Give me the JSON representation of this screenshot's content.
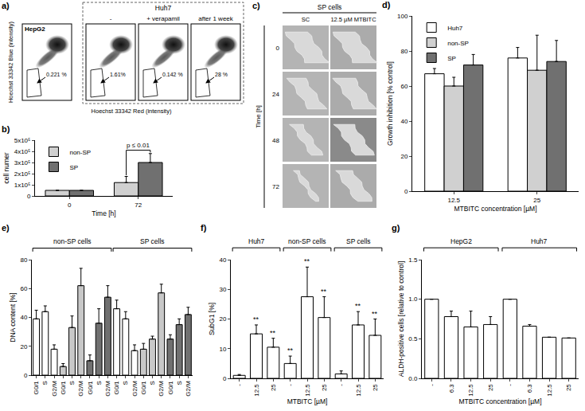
{
  "flow_panel": {
    "label": "a)",
    "x_label": "Hoechst 33342 Red (intensity)",
    "y_label": "Hoechst 33342 Blue (intensity)",
    "group": "Huh7",
    "plots": [
      {
        "title": "HepG2",
        "gate": "0.221 %"
      },
      {
        "header": "-",
        "gate": "1.61%"
      },
      {
        "header": "+ verapamil",
        "gate": "0.142 %"
      },
      {
        "header": "after 1 week",
        "gate": "28 %"
      }
    ]
  },
  "image_panel": {
    "label": "c)",
    "title": "SP cells",
    "columns": [
      "SC",
      "12.5 µM MTBITC"
    ],
    "rows": [
      "0",
      "24",
      "48",
      "72"
    ],
    "row_label": "Time [h]"
  },
  "chart_data": [
    {
      "label": "b)",
      "type": "bar",
      "categories": [
        "0",
        "72"
      ],
      "x_label": "Time [h]",
      "y_label": "cell numer",
      "series": [
        {
          "name": "non-SP",
          "color": "#d0d0d0",
          "values": [
            50000,
            120000
          ],
          "errors": [
            0,
            55000
          ]
        },
        {
          "name": "SP",
          "color": "#707070",
          "values": [
            50000,
            300000
          ],
          "errors": [
            0,
            80000
          ]
        }
      ],
      "ylim": [
        0,
        500000
      ],
      "yticks": [
        0,
        {
          "value": 100000,
          "label": "1x10⁵"
        },
        {
          "value": 200000,
          "label": "2x10⁵"
        },
        {
          "value": 300000,
          "label": "3x10⁵"
        },
        {
          "value": 400000,
          "label": "4x10⁵"
        },
        {
          "value": 500000,
          "label": "5x10⁵"
        }
      ],
      "legend": "top left",
      "grid": false,
      "comparison": {
        "label": "p ≤ 0.01",
        "category": "72"
      }
    },
    {
      "label": "d)",
      "type": "bar",
      "categories": [
        "12.5",
        "25"
      ],
      "x_label": "MTBITC concentration [µM]",
      "y_label": "Growth inhibition [% control]",
      "series": [
        {
          "name": "Huh7",
          "color": "#ffffff",
          "values": [
            67,
            76
          ],
          "errors": [
            3,
            6
          ]
        },
        {
          "name": "non-SP",
          "color": "#d0d0d0",
          "values": [
            60,
            69
          ],
          "errors": [
            5,
            20
          ]
        },
        {
          "name": "SP",
          "color": "#707070",
          "values": [
            72,
            74
          ],
          "errors": [
            6,
            12
          ]
        }
      ],
      "ylim": [
        0,
        100
      ],
      "yticks": [
        0,
        20,
        40,
        60,
        80,
        100
      ],
      "legend": "top left",
      "grid": false
    },
    {
      "label": "e)",
      "type": "bar",
      "categories": [
        "G0/1",
        "S",
        "G2/M",
        "G0/1",
        "S",
        "G2/M",
        "G0/1",
        "S",
        "G2/M",
        "G0/1",
        "S",
        "G2/M",
        "G0/1",
        "S",
        "G2/M",
        "G0/1",
        "S",
        "G2/M"
      ],
      "y_label": "DNA content [%]",
      "values": [
        39,
        44,
        18,
        6,
        33,
        62,
        10,
        36,
        54,
        46,
        39,
        17,
        18,
        25,
        57,
        25,
        35,
        42
      ],
      "errors": [
        6,
        4,
        3,
        2,
        8,
        12,
        4,
        10,
        8,
        6,
        5,
        4,
        4,
        2,
        6,
        3,
        4,
        5
      ],
      "colors": [
        "#ffffff",
        "#ffffff",
        "#ffffff",
        "#c8c8c8",
        "#c8c8c8",
        "#c8c8c8",
        "#707070",
        "#707070",
        "#707070",
        "#ffffff",
        "#ffffff",
        "#ffffff",
        "#c8c8c8",
        "#c8c8c8",
        "#c8c8c8",
        "#707070",
        "#707070",
        "#707070"
      ],
      "groups": [
        {
          "label": "non-SP cells",
          "count": 9
        },
        {
          "label": "SP cells",
          "count": 9
        }
      ],
      "ylim": [
        0,
        80
      ],
      "yticks": [
        0,
        20,
        40,
        60,
        80
      ],
      "grid": false
    },
    {
      "label": "f)",
      "type": "bar",
      "categories": [
        "-",
        "12.5",
        "25",
        "-",
        "12.5",
        "25",
        "-",
        "12.5",
        "25"
      ],
      "x_label": "MTBITC [µM]",
      "y_label": "SubG1 [%]",
      "values": [
        1,
        15,
        10.5,
        5,
        27.5,
        20.5,
        1.5,
        18,
        14.5
      ],
      "errors": [
        0.3,
        3,
        3,
        2.5,
        10,
        7,
        1,
        4.5,
        5.5
      ],
      "color": "#ffffff",
      "significance": [
        null,
        "**",
        "**",
        "**",
        "**",
        "**",
        null,
        "**",
        "**"
      ],
      "groups": [
        {
          "label": "Huh7",
          "count": 3
        },
        {
          "label": "non-SP cells",
          "count": 3
        },
        {
          "label": "SP cells",
          "count": 3
        }
      ],
      "ylim": [
        0,
        40
      ],
      "yticks": [
        0,
        10,
        20,
        30,
        40
      ],
      "grid": false
    },
    {
      "label": "g)",
      "type": "bar",
      "categories": [
        "-",
        "6.3",
        "12.5",
        "25",
        "-",
        "6.3",
        "12.5",
        "25"
      ],
      "x_label": "MTBITC concentration [µM]",
      "y_label": "ALDH-positive cells [relative to control]",
      "values": [
        1.0,
        0.78,
        0.65,
        0.68,
        1.0,
        0.66,
        0.52,
        0.51
      ],
      "errors": [
        0,
        0.07,
        0.2,
        0.1,
        0,
        0.02,
        0,
        0
      ],
      "color": "#ffffff",
      "groups": [
        {
          "label": "HepG2",
          "count": 4
        },
        {
          "label": "Huh7",
          "count": 4
        }
      ],
      "ylim": [
        0,
        1.5
      ],
      "yticks": [
        {
          "value": 0,
          "label": "0.0"
        },
        0.5,
        {
          "value": 1,
          "label": "1.0"
        },
        1.5
      ],
      "grid": false
    }
  ]
}
